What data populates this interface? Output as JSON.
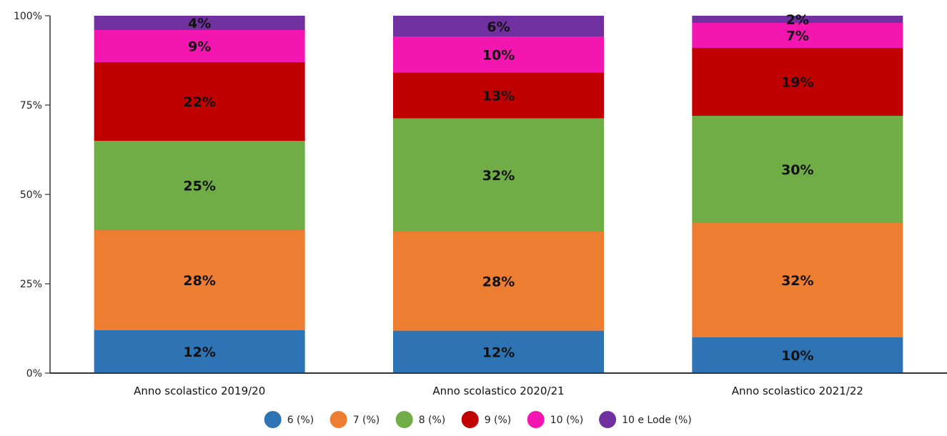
{
  "chart_data": {
    "type": "bar",
    "stacked": true,
    "percent_scale": true,
    "categories": [
      "Anno scolastico 2019/20",
      "Anno scolastico 2020/21",
      "Anno scolastico 2021/22"
    ],
    "series": [
      {
        "name": "6 (%)",
        "color": "#2e74b5",
        "values": [
          12,
          12,
          10
        ]
      },
      {
        "name": "7 (%)",
        "color": "#ed7d31",
        "values": [
          28,
          28,
          32
        ]
      },
      {
        "name": "8 (%)",
        "color": "#70ad47",
        "values": [
          25,
          32,
          30
        ]
      },
      {
        "name": "9 (%)",
        "color": "#c00000",
        "values": [
          22,
          13,
          19
        ]
      },
      {
        "name": "10 (%)",
        "color": "#f316b0",
        "values": [
          9,
          10,
          7
        ]
      },
      {
        "name": "10 e Lode (%)",
        "color": "#7030a0",
        "values": [
          4,
          6,
          2
        ]
      }
    ],
    "ylim": [
      0,
      100
    ],
    "yticks": [
      "0%",
      "25%",
      "50%",
      "75%",
      "100%"
    ],
    "grid": false,
    "legend_position": "bottom",
    "title": "",
    "xlabel": "",
    "ylabel": ""
  }
}
